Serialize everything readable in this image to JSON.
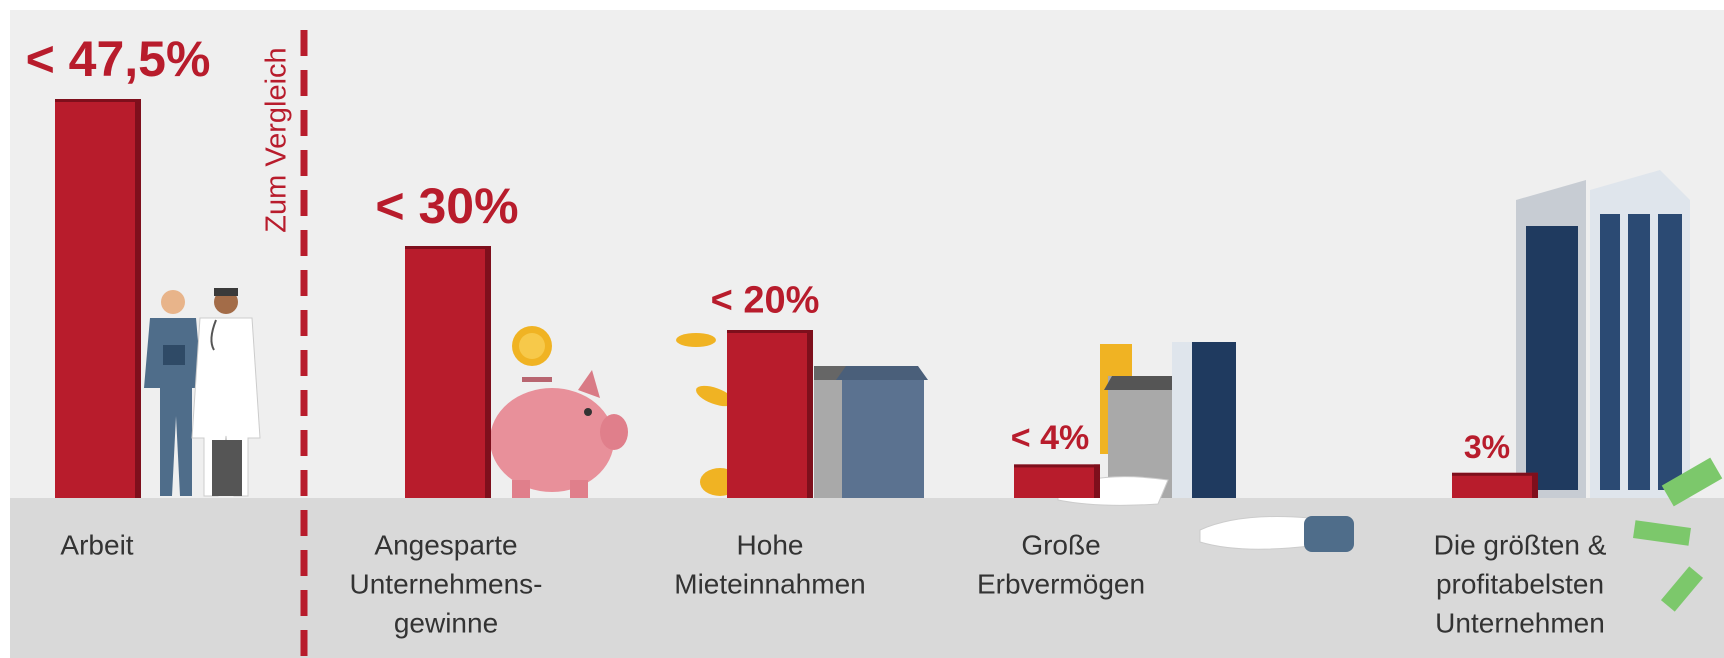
{
  "chart_data": {
    "type": "bar",
    "categories": [
      [
        "Arbeit"
      ],
      [
        "Angesparte",
        "Unternehmens-",
        "gewinne"
      ],
      [
        "Hohe",
        "Mieteinnahmen"
      ],
      [
        "Große",
        "Erbvermögen"
      ],
      [
        "Die größten &",
        "profitabelsten",
        "Unternehmen"
      ]
    ],
    "values": [
      47.5,
      30,
      20,
      4,
      3
    ],
    "value_labels": [
      "< 47,5%",
      "< 30%",
      "< 20%",
      "< 4%",
      "3%"
    ],
    "color": "#b81c2c",
    "annotation": "Zum Vergleich"
  }
}
